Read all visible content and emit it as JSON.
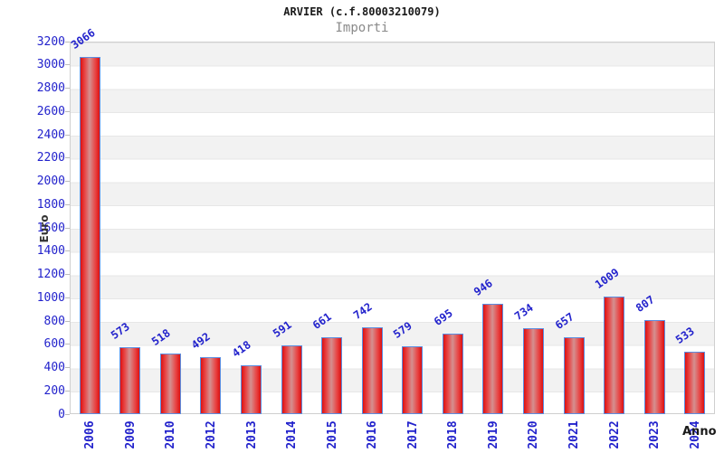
{
  "header": {
    "title": "ARVIER (c.f.80003210079)",
    "subtitle": "Importi"
  },
  "chart_data": {
    "type": "bar",
    "title": "ARVIER (c.f.80003210079)",
    "subtitle": "Importi",
    "xlabel": "Anno",
    "ylabel": "Euro",
    "categories": [
      "2006",
      "2009",
      "2010",
      "2012",
      "2013",
      "2014",
      "2015",
      "2016",
      "2017",
      "2018",
      "2019",
      "2020",
      "2021",
      "2022",
      "2023",
      "2024"
    ],
    "values": [
      3066,
      573,
      518,
      492,
      418,
      591,
      661,
      742,
      579,
      695,
      946,
      734,
      657,
      1009,
      807,
      533
    ],
    "value_labels": [
      "3066",
      "573",
      "518",
      "492",
      "418",
      "591",
      "661",
      "742",
      "579",
      "695",
      "946",
      "734",
      "657",
      "1009",
      "807",
      "533"
    ],
    "ylim": [
      0,
      3200
    ],
    "ytick_step": 200,
    "yticks": [
      0,
      200,
      400,
      600,
      800,
      1000,
      1200,
      1400,
      1600,
      1800,
      2000,
      2200,
      2400,
      2600,
      2800,
      3000,
      3200
    ],
    "grid": "alternating horizontal gray/white bands, no vertical gridlines",
    "legend": "none",
    "colors": {
      "axis_text": "#2222cc",
      "bar_fill_edge": "#dd1111",
      "bar_fill_mid": "#d49090",
      "bar_border": "#5b8de0",
      "band_gray": "#f2f2f2",
      "plot_border": "#cfcfcf",
      "title": "#1a1a1a",
      "subtitle": "#8a8a8a",
      "axis_title": "#333333"
    }
  }
}
